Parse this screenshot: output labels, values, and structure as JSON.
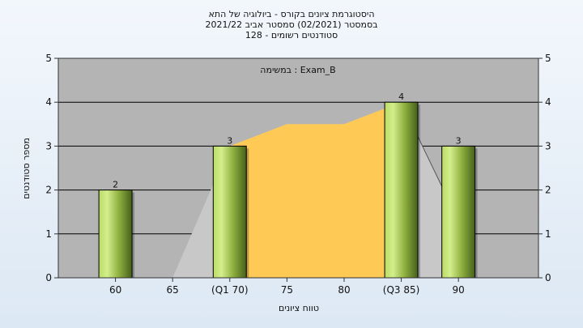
{
  "chart_data": {
    "type": "bar",
    "title_lines": [
      "היסטוגרמת ציונים בקורס - ביולוגיה של התא",
      "בסמסטר  (02/2021)  סמסטר אביב 2021/22",
      "סטודנטים רשומים - 128"
    ],
    "annotation": "במשימה : Exam_B",
    "xlabel": "טווח ציונים",
    "ylabel": "מספר סטודנטים",
    "x_ticks": [
      {
        "value": 60,
        "label": "60"
      },
      {
        "value": 65,
        "label": "65"
      },
      {
        "value": 70,
        "label": "(Q1 70)"
      },
      {
        "value": 75,
        "label": "75"
      },
      {
        "value": 80,
        "label": "80"
      },
      {
        "value": 85,
        "label": "(Q3 85)"
      },
      {
        "value": 90,
        "label": "90"
      }
    ],
    "xlim": [
      55,
      97
    ],
    "ylim": [
      0,
      5
    ],
    "y_ticks": [
      0,
      1,
      2,
      3,
      4,
      5
    ],
    "grid": true,
    "bars": [
      {
        "x": 60,
        "value": 2,
        "label": "2"
      },
      {
        "x": 70,
        "value": 3,
        "label": "3"
      },
      {
        "x": 85,
        "value": 4,
        "label": "4"
      },
      {
        "x": 90,
        "value": 3,
        "label": "3"
      }
    ],
    "background_area": {
      "x": [
        65,
        70,
        75,
        80,
        85,
        90
      ],
      "y": [
        0,
        3,
        3.5,
        3.5,
        4,
        1.3
      ]
    },
    "box_area": {
      "x_start": 70,
      "x_end": 85
    },
    "colors": {
      "plot_bg": "#b4b4b4",
      "area_gray": "#c8c8c8",
      "area_orange": "#ffc955",
      "bar_light": "#c8e87a",
      "bar_dark": "#4e6a1e"
    }
  }
}
